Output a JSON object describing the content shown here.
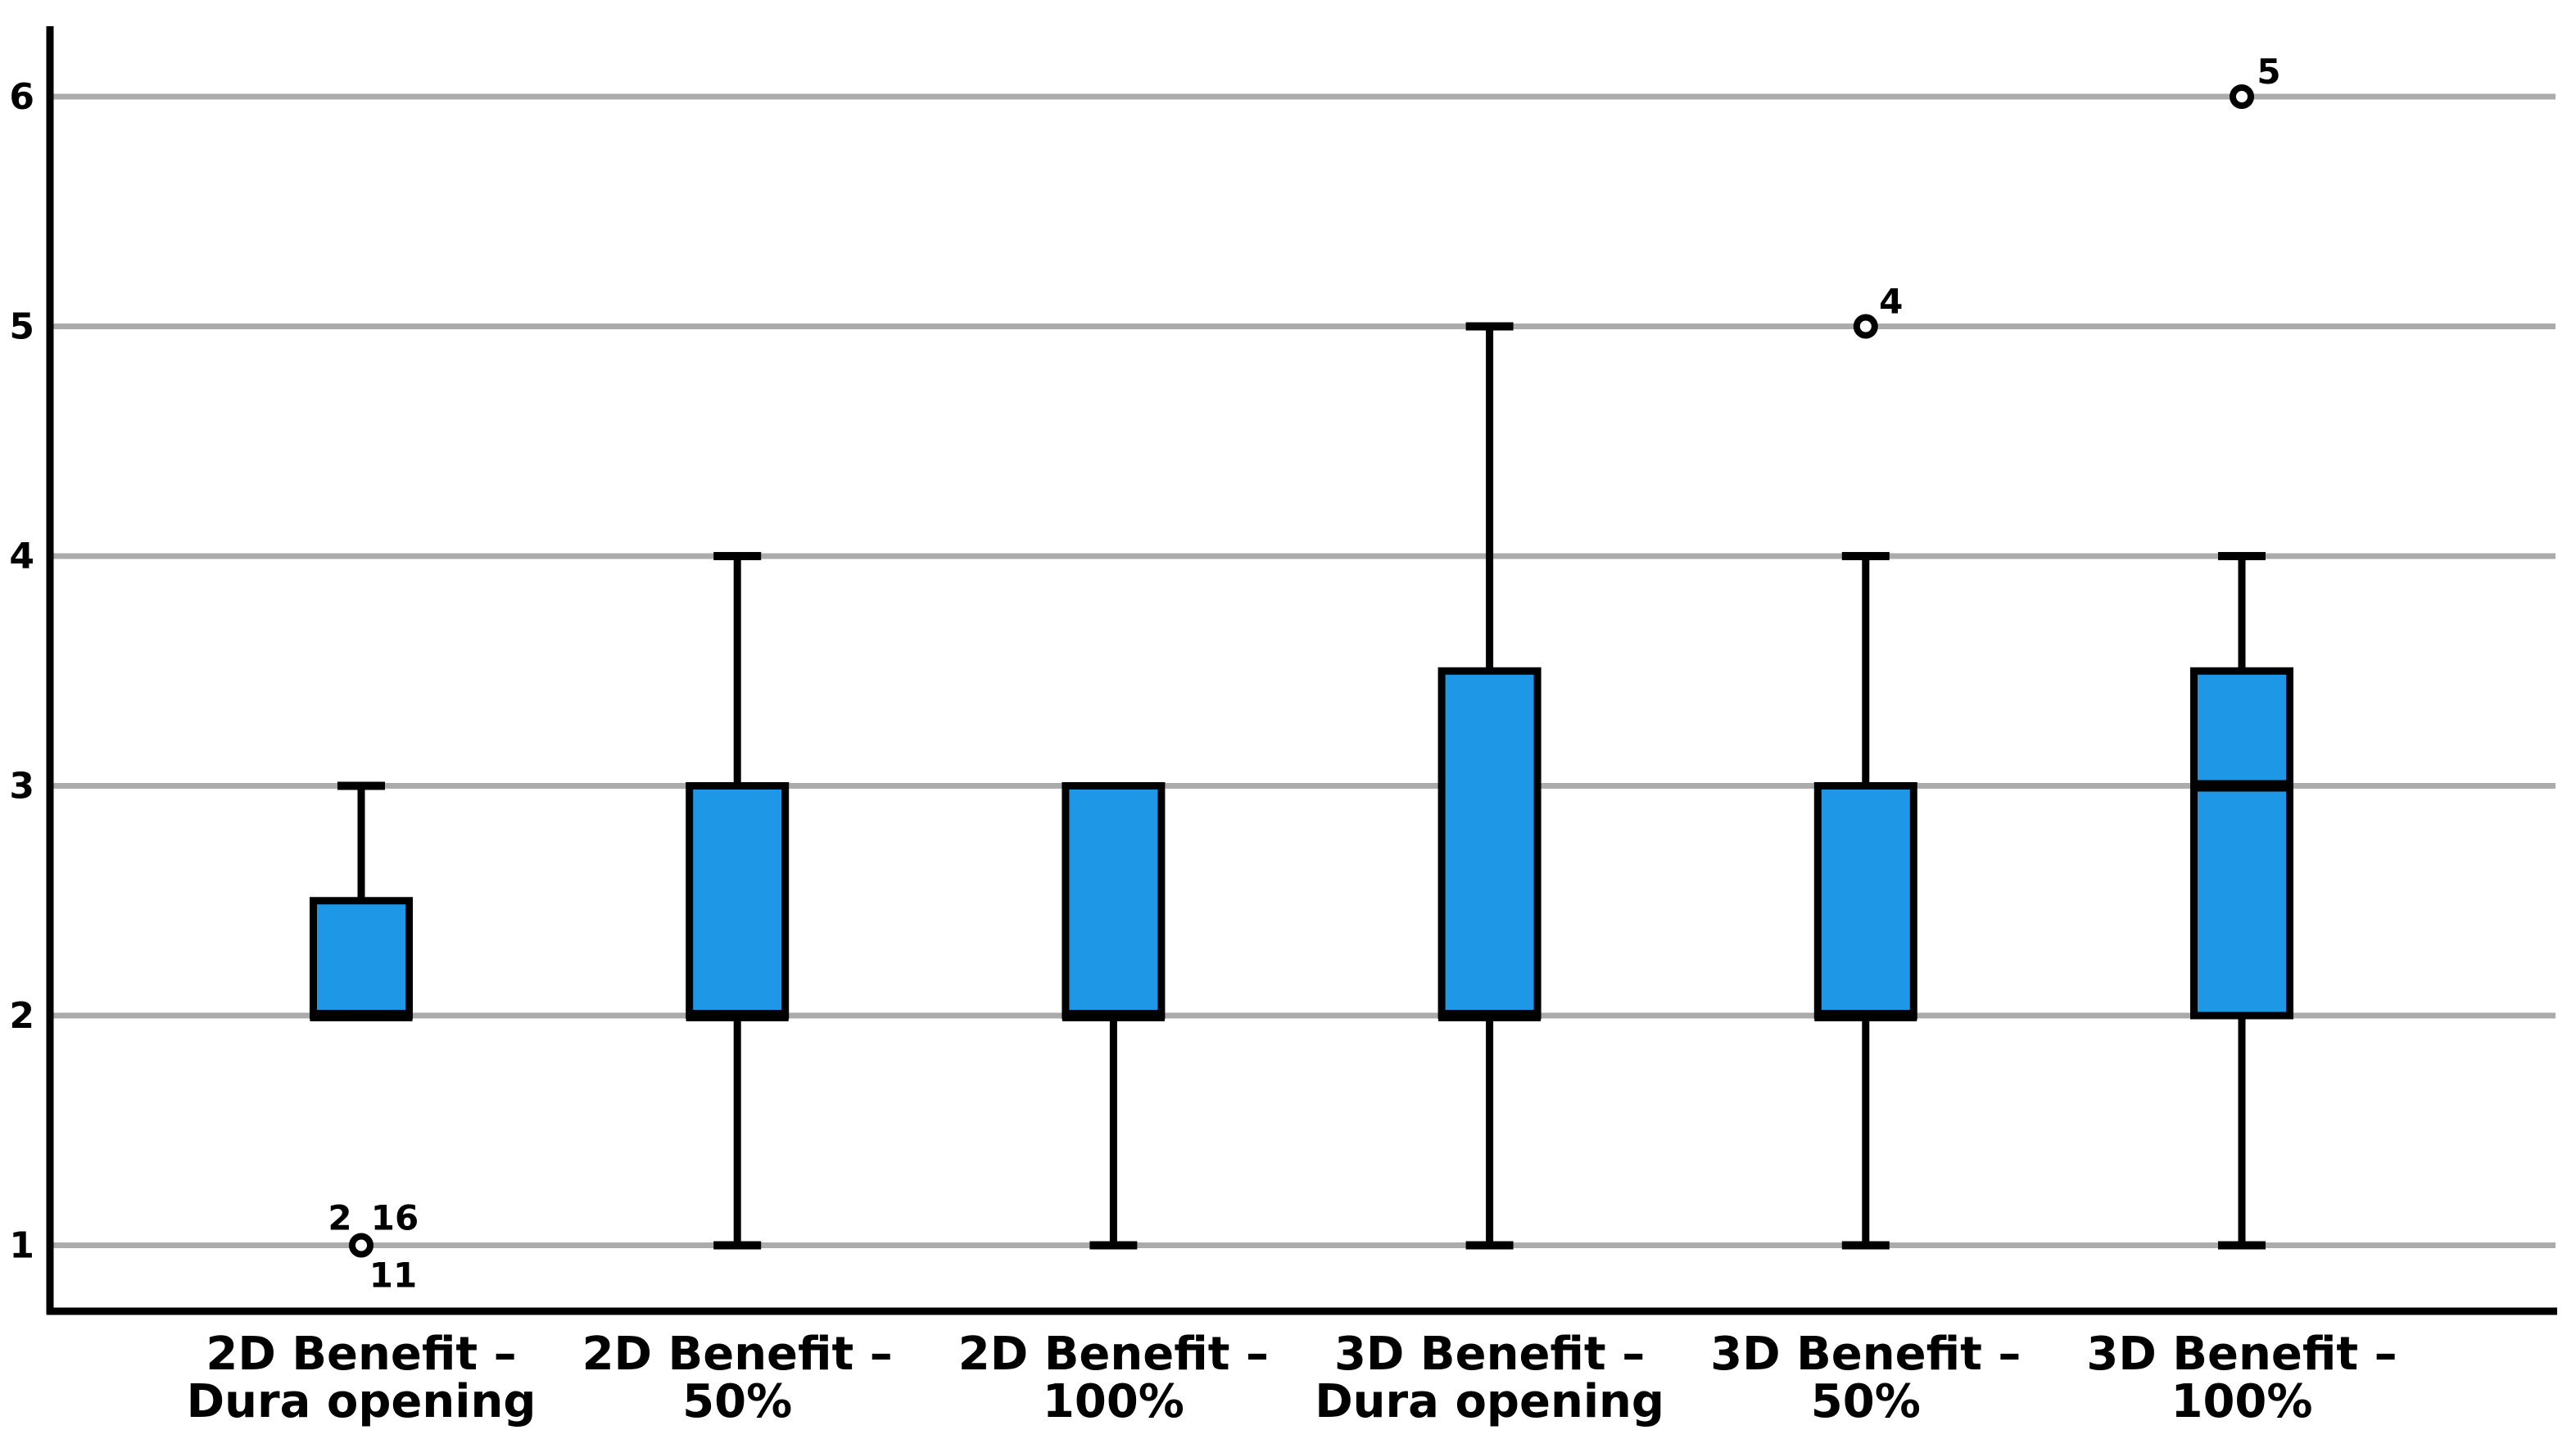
{
  "chart_data": {
    "type": "boxplot",
    "title": "",
    "xlabel": "",
    "ylabel": "",
    "ylim": [
      1,
      6
    ],
    "yticks": [
      1,
      2,
      3,
      4,
      5,
      6
    ],
    "grid": "horizontal-only",
    "legend": "none",
    "colors": {
      "box_fill": "#1E98E6",
      "box_border": "#000000",
      "median": "#000000",
      "whisker": "#000000",
      "gridline": "#ABABAB",
      "axis": "#000000",
      "outlier_stroke": "#000000",
      "outlier_fill": "#FFFFFF",
      "background": "#FFFFFF"
    },
    "series": [
      {
        "label_line1": "2D Benefit –",
        "label_line2": "Dura opening",
        "q1": 2,
        "median": 2,
        "q3": 2.5,
        "whisker_low": null,
        "whisker_high": 3,
        "outliers": [
          {
            "value": 1,
            "case_labels": [
              {
                "text": "2",
                "dx": -26,
                "dy": -19
              },
              {
                "text": "16",
                "dx": 41,
                "dy": -19
              },
              {
                "text": "11",
                "dx": 39,
                "dy": 51
              }
            ]
          }
        ]
      },
      {
        "label_line1": "2D Benefit –",
        "label_line2": "50%",
        "q1": 2,
        "median": 2,
        "q3": 3,
        "whisker_low": 1,
        "whisker_high": 4,
        "outliers": []
      },
      {
        "label_line1": "2D Benefit –",
        "label_line2": "100%",
        "q1": 2,
        "median": 2,
        "q3": 3,
        "whisker_low": 1,
        "whisker_high": null,
        "outliers": []
      },
      {
        "label_line1": "3D Benefit –",
        "label_line2": "Dura opening",
        "q1": 2,
        "median": 2,
        "q3": 3.5,
        "whisker_low": 1,
        "whisker_high": 5,
        "outliers": []
      },
      {
        "label_line1": "3D Benefit –",
        "label_line2": "50%",
        "q1": 2,
        "median": 2,
        "q3": 3,
        "whisker_low": 1,
        "whisker_high": 4,
        "outliers": [
          {
            "value": 5,
            "case_labels": [
              {
                "text": "4",
                "dx": 31,
                "dy": -16
              }
            ]
          }
        ]
      },
      {
        "label_line1": "3D Benefit –",
        "label_line2": "100%",
        "q1": 2,
        "median": 3,
        "q3": 3.5,
        "whisker_low": 1,
        "whisker_high": 4,
        "outliers": [
          {
            "value": 6,
            "case_labels": [
              {
                "text": "5",
                "dx": 33,
                "dy": -16
              }
            ]
          }
        ]
      }
    ]
  }
}
